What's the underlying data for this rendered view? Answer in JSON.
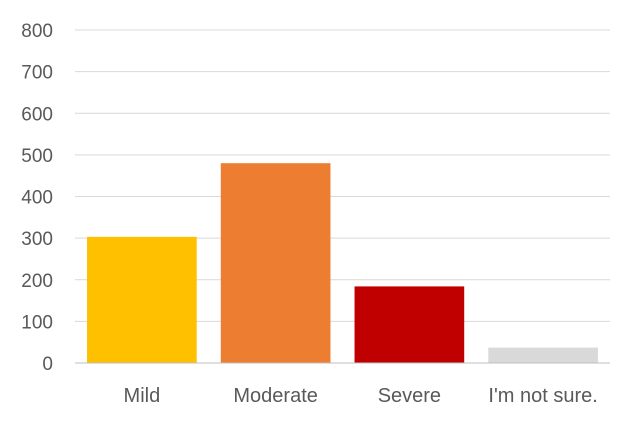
{
  "chart_data": {
    "type": "bar",
    "categories": [
      "Mild",
      "Moderate",
      "Severe",
      "I'm not sure."
    ],
    "values": [
      303,
      480,
      184,
      37
    ],
    "colors": [
      "#ffc000",
      "#ed7d31",
      "#c00000",
      "#d9d9d9"
    ],
    "ylim": [
      0,
      800
    ],
    "yticks": [
      0,
      100,
      200,
      300,
      400,
      500,
      600,
      700,
      800
    ],
    "grid": true,
    "legend": "none"
  }
}
